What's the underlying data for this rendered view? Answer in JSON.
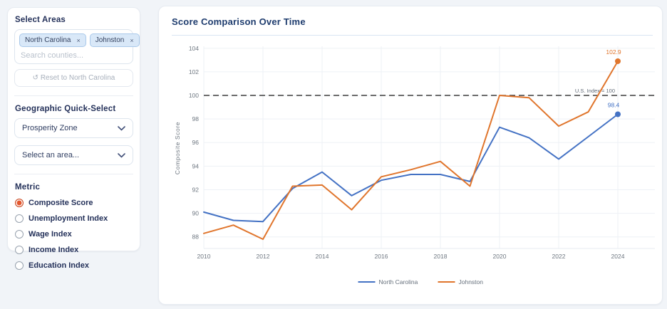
{
  "sidebar": {
    "select_areas_label": "Select Areas",
    "tags": [
      {
        "label": "North Carolina",
        "remove": "×"
      },
      {
        "label": "Johnston",
        "remove": "×"
      }
    ],
    "search_placeholder": "Search counties...",
    "reset_icon": "↺",
    "reset_label": "Reset to North Carolina",
    "quick_select_label": "Geographic Quick-Select",
    "zone_select_value": "Prosperity Zone",
    "area_select_value": "Select an area...",
    "metric_label": "Metric",
    "metrics": [
      {
        "label": "Composite Score",
        "selected": true
      },
      {
        "label": "Unemployment Index",
        "selected": false
      },
      {
        "label": "Wage Index",
        "selected": false
      },
      {
        "label": "Income Index",
        "selected": false
      },
      {
        "label": "Education Index",
        "selected": false
      }
    ],
    "selected_radio_color": "#e4572e"
  },
  "main": {
    "title": "Score Comparison Over Time"
  },
  "chart_data": {
    "type": "line",
    "title": "Score Comparison Over Time",
    "xlabel": "",
    "ylabel": "Composite Score",
    "x": [
      2010,
      2011,
      2012,
      2013,
      2014,
      2015,
      2016,
      2017,
      2018,
      2019,
      2020,
      2021,
      2022,
      2023,
      2024
    ],
    "series": [
      {
        "name": "North Carolina",
        "color": "#4472c4",
        "values": [
          90.1,
          89.4,
          89.3,
          92.1,
          93.5,
          91.5,
          92.8,
          93.3,
          93.3,
          92.7,
          97.3,
          96.4,
          94.6,
          96.5,
          98.4
        ],
        "end_label": "98.4"
      },
      {
        "name": "Johnston",
        "color": "#e0752c",
        "values": [
          88.3,
          89.0,
          87.8,
          92.3,
          92.4,
          90.3,
          93.1,
          93.7,
          94.4,
          92.3,
          100.0,
          99.8,
          97.4,
          98.6,
          102.9
        ],
        "end_label": "102.9"
      }
    ],
    "ylim": [
      88,
      104
    ],
    "yticks": [
      88,
      90,
      92,
      94,
      96,
      98,
      100,
      102,
      104
    ],
    "xticks": [
      2010,
      2012,
      2014,
      2016,
      2018,
      2020,
      2022,
      2024
    ],
    "reference_line": {
      "value": 100,
      "label": "U.S. Index = 100",
      "color": "#3c3c3c"
    },
    "grid": true,
    "legend_position": "bottom"
  }
}
